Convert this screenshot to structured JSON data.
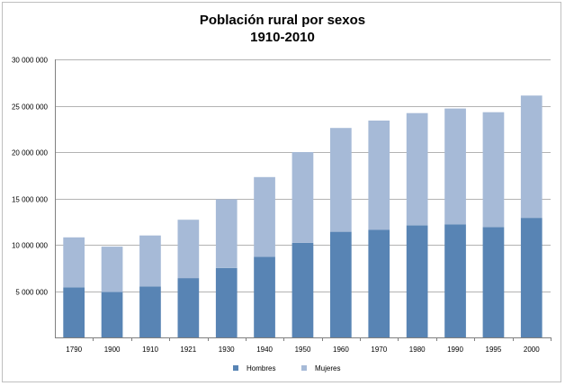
{
  "chart_data": {
    "type": "bar",
    "stacked": true,
    "title": "Población rural por sexos",
    "subtitle": "1910-2010",
    "categories": [
      "1790",
      "1900",
      "1910",
      "1921",
      "1930",
      "1940",
      "1950",
      "1960",
      "1970",
      "1980",
      "1990",
      "1995",
      "2000"
    ],
    "series": [
      {
        "name": "Hombres",
        "color": "#5884b4",
        "values": [
          5400000,
          4900000,
          5500000,
          6400000,
          7500000,
          8700000,
          10200000,
          11400000,
          11600000,
          12100000,
          12200000,
          11900000,
          12900000
        ]
      },
      {
        "name": "Mujeres",
        "color": "#a6bad7",
        "values": [
          5400000,
          4900000,
          5500000,
          6300000,
          7400000,
          8600000,
          9800000,
          11200000,
          11800000,
          12100000,
          12500000,
          12400000,
          13200000
        ]
      }
    ],
    "ylim": [
      0,
      30000000
    ],
    "yticks": [
      5000000,
      10000000,
      15000000,
      20000000,
      25000000,
      30000000
    ],
    "ytick_labels": [
      "5 000 000",
      "10 000 000",
      "15 000 000",
      "20 000 000",
      "25 000 000",
      "30 000 000"
    ],
    "grid": true,
    "legend": "bottom"
  }
}
